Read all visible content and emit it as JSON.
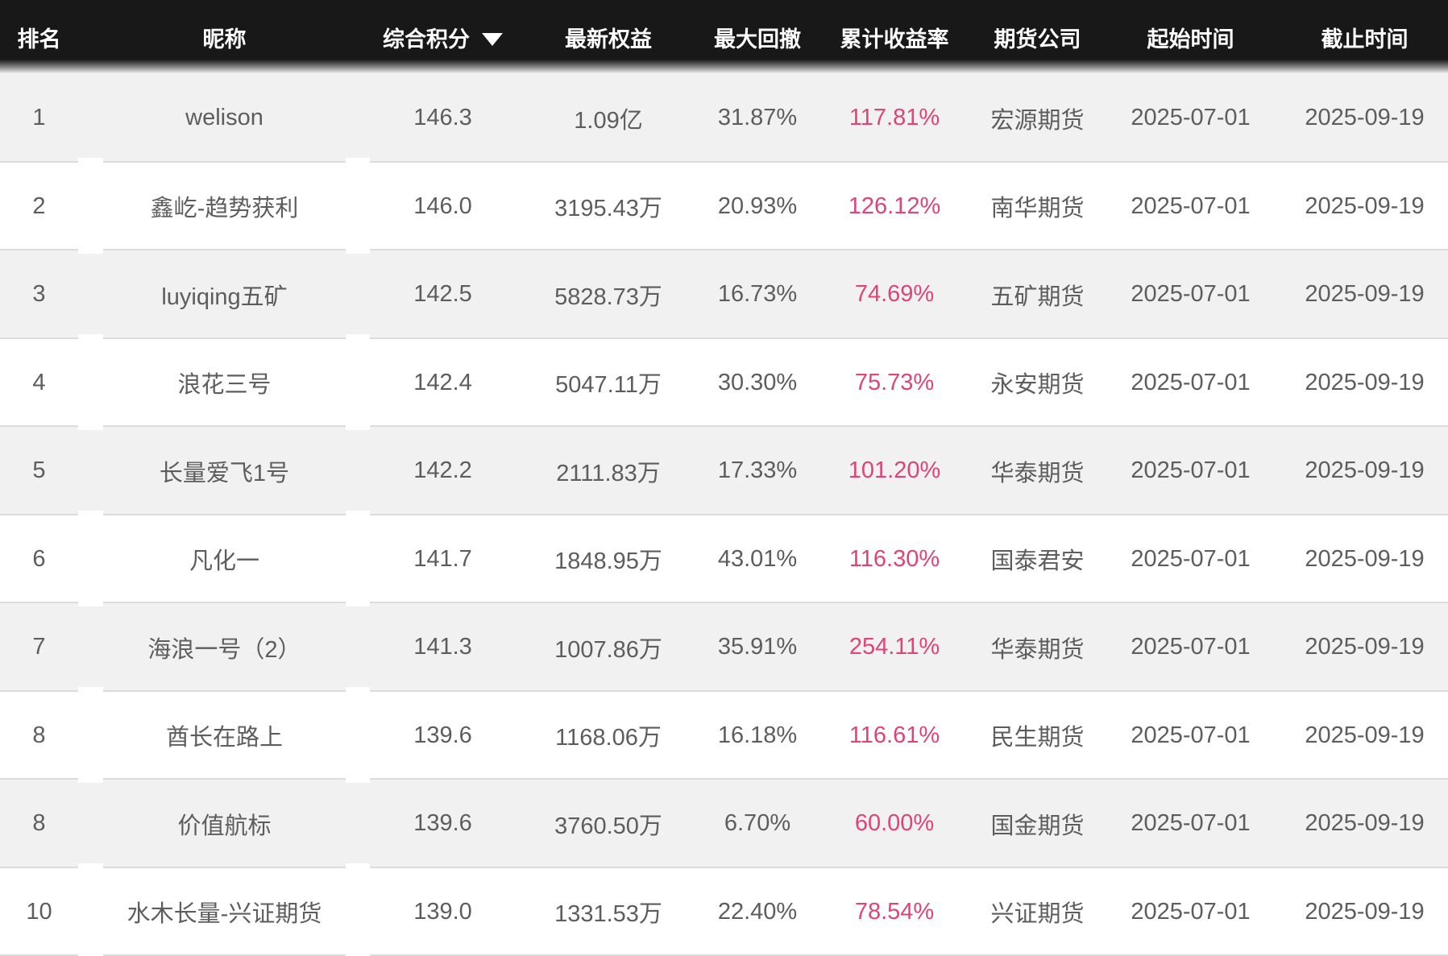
{
  "table": {
    "headers": {
      "rank": "排名",
      "nickname": "昵称",
      "score": "综合积分",
      "equity": "最新权益",
      "drawdown": "最大回撤",
      "cum_return": "累计收益率",
      "company": "期货公司",
      "start_date": "起始时间",
      "end_date": "截止时间"
    },
    "sort": {
      "column": "综合积分",
      "direction": "desc",
      "icon": "caret-down"
    },
    "rows": [
      {
        "rank": "1",
        "nickname": "welison",
        "score": "146.3",
        "equity": "1.09亿",
        "drawdown": "31.87%",
        "cum_return": "117.81%",
        "company": "宏源期货",
        "start_date": "2025-07-01",
        "end_date": "2025-09-19"
      },
      {
        "rank": "2",
        "nickname": "鑫屹-趋势获利",
        "score": "146.0",
        "equity": "3195.43万",
        "drawdown": "20.93%",
        "cum_return": "126.12%",
        "company": "南华期货",
        "start_date": "2025-07-01",
        "end_date": "2025-09-19"
      },
      {
        "rank": "3",
        "nickname": "luyiqing五矿",
        "score": "142.5",
        "equity": "5828.73万",
        "drawdown": "16.73%",
        "cum_return": "74.69%",
        "company": "五矿期货",
        "start_date": "2025-07-01",
        "end_date": "2025-09-19"
      },
      {
        "rank": "4",
        "nickname": "浪花三号",
        "score": "142.4",
        "equity": "5047.11万",
        "drawdown": "30.30%",
        "cum_return": "75.73%",
        "company": "永安期货",
        "start_date": "2025-07-01",
        "end_date": "2025-09-19"
      },
      {
        "rank": "5",
        "nickname": "长量爱飞1号",
        "score": "142.2",
        "equity": "2111.83万",
        "drawdown": "17.33%",
        "cum_return": "101.20%",
        "company": "华泰期货",
        "start_date": "2025-07-01",
        "end_date": "2025-09-19"
      },
      {
        "rank": "6",
        "nickname": "凡化一",
        "score": "141.7",
        "equity": "1848.95万",
        "drawdown": "43.01%",
        "cum_return": "116.30%",
        "company": "国泰君安",
        "start_date": "2025-07-01",
        "end_date": "2025-09-19"
      },
      {
        "rank": "7",
        "nickname": "海浪一号（2）",
        "score": "141.3",
        "equity": "1007.86万",
        "drawdown": "35.91%",
        "cum_return": "254.11%",
        "company": "华泰期货",
        "start_date": "2025-07-01",
        "end_date": "2025-09-19"
      },
      {
        "rank": "8",
        "nickname": "酋长在路上",
        "score": "139.6",
        "equity": "1168.06万",
        "drawdown": "16.18%",
        "cum_return": "116.61%",
        "company": "民生期货",
        "start_date": "2025-07-01",
        "end_date": "2025-09-19"
      },
      {
        "rank": "8",
        "nickname": "价值航标",
        "score": "139.6",
        "equity": "3760.50万",
        "drawdown": "6.70%",
        "cum_return": "60.00%",
        "company": "国金期货",
        "start_date": "2025-07-01",
        "end_date": "2025-09-19"
      },
      {
        "rank": "10",
        "nickname": "水木长量-兴证期货",
        "score": "139.0",
        "equity": "1331.53万",
        "drawdown": "22.40%",
        "cum_return": "78.54%",
        "company": "兴证期货",
        "start_date": "2025-07-01",
        "end_date": "2025-09-19"
      }
    ]
  },
  "colors": {
    "accent_pink": "#df4379",
    "header_bg": "#181818",
    "row_alt_bg": "#f1f1f1",
    "separator": "#dcdcdc",
    "text": "#5d5d5d"
  }
}
